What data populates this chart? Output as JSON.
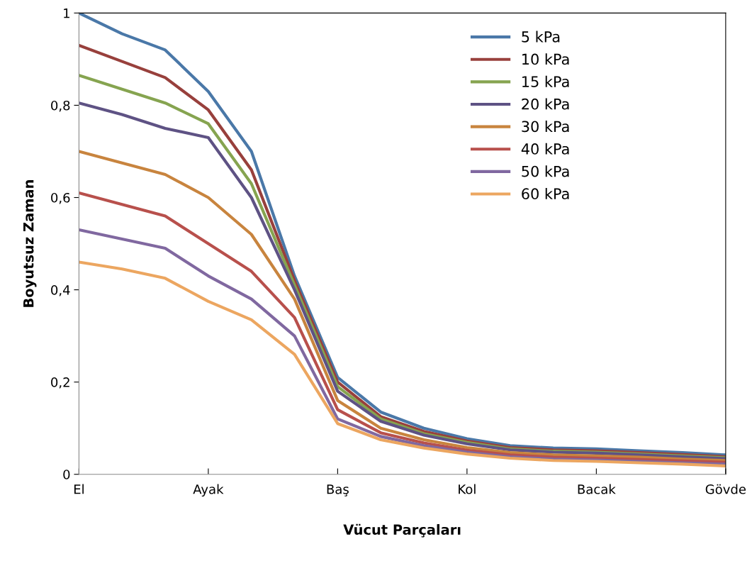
{
  "chart_data": {
    "type": "line",
    "xlabel": "Vücut Parçaları",
    "ylabel": "Boyutsuz Zaman",
    "categories": [
      "El",
      null,
      null,
      "Ayak",
      null,
      null,
      "Baş",
      null,
      null,
      "Kol",
      null,
      null,
      "Bacak",
      null,
      null,
      "Gövde"
    ],
    "series": [
      {
        "name": "5 kPa",
        "color": "#4a78a8",
        "values": [
          1.0,
          0.955,
          0.92,
          0.83,
          0.7,
          0.43,
          0.21,
          0.135,
          0.1,
          0.077,
          0.062,
          0.057,
          0.055,
          0.051,
          0.047,
          0.042
        ]
      },
      {
        "name": "10 kPa",
        "color": "#98403c",
        "values": [
          0.93,
          0.895,
          0.86,
          0.79,
          0.66,
          0.42,
          0.2,
          0.125,
          0.093,
          0.072,
          0.058,
          0.053,
          0.051,
          0.047,
          0.043,
          0.038
        ]
      },
      {
        "name": "15 kPa",
        "color": "#86a450",
        "values": [
          0.865,
          0.835,
          0.805,
          0.76,
          0.63,
          0.41,
          0.19,
          0.12,
          0.088,
          0.069,
          0.055,
          0.05,
          0.048,
          0.044,
          0.04,
          0.036
        ]
      },
      {
        "name": "20 kPa",
        "color": "#5e5284",
        "values": [
          0.805,
          0.78,
          0.75,
          0.73,
          0.6,
          0.4,
          0.18,
          0.115,
          0.085,
          0.066,
          0.053,
          0.048,
          0.046,
          0.042,
          0.038,
          0.034
        ]
      },
      {
        "name": "30 kPa",
        "color": "#c8843e",
        "values": [
          0.7,
          0.675,
          0.65,
          0.6,
          0.52,
          0.38,
          0.16,
          0.1,
          0.075,
          0.058,
          0.047,
          0.042,
          0.04,
          0.037,
          0.033,
          0.03
        ]
      },
      {
        "name": "40 kPa",
        "color": "#b8504c",
        "values": [
          0.61,
          0.585,
          0.56,
          0.5,
          0.44,
          0.34,
          0.14,
          0.09,
          0.068,
          0.052,
          0.042,
          0.037,
          0.035,
          0.032,
          0.029,
          0.026
        ]
      },
      {
        "name": "50 kPa",
        "color": "#8068a0",
        "values": [
          0.53,
          0.51,
          0.49,
          0.43,
          0.38,
          0.3,
          0.12,
          0.082,
          0.062,
          0.048,
          0.038,
          0.033,
          0.031,
          0.028,
          0.025,
          0.022
        ]
      },
      {
        "name": "60 kPa",
        "color": "#eca660",
        "values": [
          0.46,
          0.445,
          0.425,
          0.375,
          0.335,
          0.26,
          0.11,
          0.075,
          0.057,
          0.044,
          0.035,
          0.03,
          0.028,
          0.025,
          0.022,
          0.018
        ]
      }
    ],
    "ylim": [
      0,
      1
    ],
    "yticks": [
      0,
      {
        "value": 0.2,
        "label": "0,2"
      },
      {
        "value": 0.4,
        "label": "0,4"
      },
      {
        "value": 0.6,
        "label": "0,6"
      },
      {
        "value": 0.8,
        "label": "0,8"
      },
      1
    ],
    "grid": false,
    "legend": "top right",
    "marker": "none",
    "line_style": "solid"
  }
}
